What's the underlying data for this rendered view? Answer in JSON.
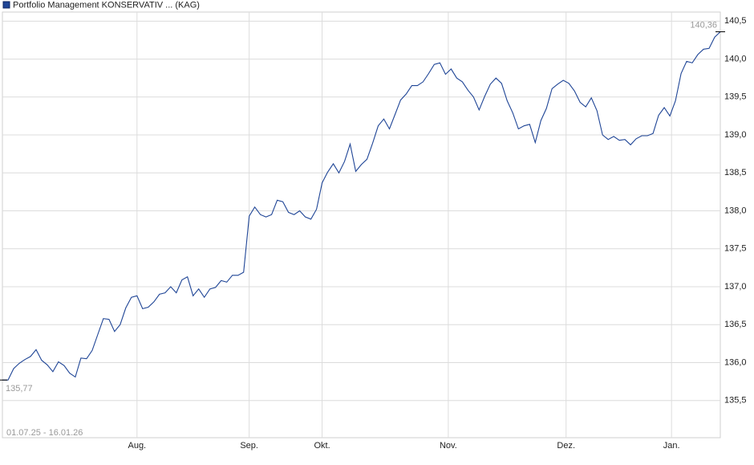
{
  "chart_data": {
    "type": "line",
    "title": "Portfolio Management KONSERVATIV ... (KAG)",
    "date_range": "01.07.25 - 16.01.26",
    "color": "#1f4596",
    "values": [
      135.77,
      135.77,
      135.92,
      135.99,
      136.04,
      136.08,
      136.17,
      136.03,
      135.97,
      135.88,
      136.01,
      135.96,
      135.86,
      135.81,
      136.06,
      136.05,
      136.16,
      136.37,
      136.58,
      136.57,
      136.41,
      136.5,
      136.72,
      136.86,
      136.88,
      136.71,
      136.73,
      136.8,
      136.9,
      136.92,
      137.0,
      136.92,
      137.09,
      137.13,
      136.88,
      136.97,
      136.86,
      136.97,
      136.99,
      137.08,
      137.06,
      137.15,
      137.15,
      137.19,
      137.93,
      138.05,
      137.95,
      137.92,
      137.95,
      138.14,
      138.12,
      137.98,
      137.95,
      138.0,
      137.92,
      137.89,
      138.02,
      138.37,
      138.51,
      138.62,
      138.5,
      138.65,
      138.88,
      138.52,
      138.61,
      138.68,
      138.89,
      139.12,
      139.21,
      139.08,
      139.27,
      139.46,
      139.54,
      139.65,
      139.65,
      139.7,
      139.81,
      139.93,
      139.95,
      139.8,
      139.87,
      139.75,
      139.7,
      139.59,
      139.5,
      139.33,
      139.51,
      139.67,
      139.75,
      139.68,
      139.45,
      139.29,
      139.08,
      139.12,
      139.14,
      138.9,
      139.19,
      139.35,
      139.61,
      139.67,
      139.72,
      139.68,
      139.58,
      139.43,
      139.37,
      139.49,
      139.32,
      139.0,
      138.94,
      138.98,
      138.93,
      138.94,
      138.87,
      138.95,
      138.99,
      138.99,
      139.02,
      139.26,
      139.36,
      139.25,
      139.45,
      139.81,
      139.97,
      139.95,
      140.06,
      140.13,
      140.14,
      140.29,
      140.36
    ],
    "value_labels": [
      "135,77",
      null,
      null,
      null,
      null,
      null,
      null,
      null,
      null,
      null,
      null,
      null,
      null,
      null,
      null,
      null,
      null,
      null,
      null,
      null,
      null,
      null,
      null,
      null,
      null,
      null,
      null,
      null,
      null,
      null,
      null,
      null,
      null,
      null,
      null,
      null,
      null,
      null,
      null,
      null,
      null,
      null,
      null,
      null,
      null,
      null,
      null,
      null,
      null,
      null,
      null,
      null,
      null,
      null,
      null,
      null,
      null,
      null,
      null,
      null,
      null,
      null,
      null,
      null,
      null,
      null,
      null,
      null,
      null,
      null,
      null,
      null,
      null,
      null,
      null,
      null,
      null,
      null,
      null,
      null,
      null,
      null,
      null,
      null,
      null,
      null,
      null,
      null,
      null,
      null,
      null,
      null,
      null,
      null,
      null,
      null,
      null,
      null,
      null,
      null,
      null,
      null,
      null,
      null,
      null,
      null,
      null,
      null,
      null,
      null,
      null,
      null,
      null,
      null,
      null,
      null,
      null,
      null,
      null,
      null,
      null,
      null,
      null,
      null,
      null,
      null,
      null,
      null,
      "140,36"
    ],
    "xlim": [
      0,
      128
    ],
    "xticks": [
      {
        "value": 24,
        "label": "Aug."
      },
      {
        "value": 44,
        "label": "Sep."
      },
      {
        "value": 57,
        "label": "Okt."
      },
      {
        "value": 79.5,
        "label": "Nov."
      },
      {
        "value": 100.5,
        "label": "Dez."
      },
      {
        "value": 119.3,
        "label": "Jan."
      }
    ],
    "ylim": [
      135.01,
      140.62
    ],
    "yticks": [
      {
        "value": 135.5,
        "label": "135,5"
      },
      {
        "value": 136.0,
        "label": "136,0"
      },
      {
        "value": 136.5,
        "label": "136,5"
      },
      {
        "value": 137.0,
        "label": "137,0"
      },
      {
        "value": 137.5,
        "label": "137,5"
      },
      {
        "value": 138.0,
        "label": "138,0"
      },
      {
        "value": 138.5,
        "label": "138,5"
      },
      {
        "value": 139.0,
        "label": "139,0"
      },
      {
        "value": 139.5,
        "label": "139,5"
      },
      {
        "value": 140.0,
        "label": "140,0"
      },
      {
        "value": 140.5,
        "label": "140,5"
      }
    ],
    "grid": true
  }
}
